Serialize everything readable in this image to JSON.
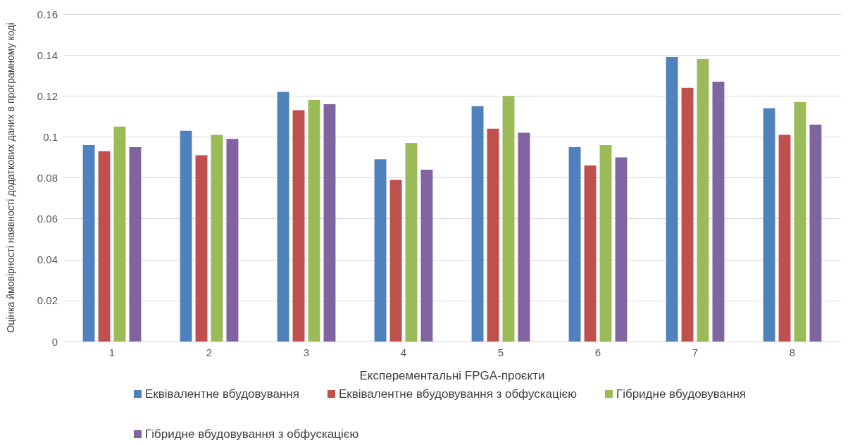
{
  "chart_data": {
    "type": "bar",
    "xlabel": "Експерементальні FPGA-проєкти",
    "ylabel": "Оцінка ймовірності наявності додаткових даних в програмному коді",
    "categories": [
      "1",
      "2",
      "3",
      "4",
      "5",
      "6",
      "7",
      "8"
    ],
    "series": [
      {
        "name": "Еквівалентне вбудовування",
        "color": "#4f81bd",
        "values": [
          0.096,
          0.103,
          0.122,
          0.089,
          0.115,
          0.095,
          0.139,
          0.114
        ]
      },
      {
        "name": "Еквівалентне вбудовування з обфускацією",
        "color": "#c0504d",
        "values": [
          0.093,
          0.091,
          0.113,
          0.079,
          0.104,
          0.086,
          0.124,
          0.101
        ]
      },
      {
        "name": "Гібридне вбудовування",
        "color": "#9bbb59",
        "values": [
          0.105,
          0.101,
          0.118,
          0.097,
          0.12,
          0.096,
          0.138,
          0.117
        ]
      },
      {
        "name": "Гібридне вбудовування з обфускацією",
        "color": "#8064a2",
        "values": [
          0.095,
          0.099,
          0.116,
          0.084,
          0.102,
          0.09,
          0.127,
          0.106
        ]
      }
    ],
    "ylim": [
      0,
      0.16
    ],
    "yticks": [
      0,
      0.02,
      0.04,
      0.06,
      0.08,
      0.1,
      0.12,
      0.14,
      0.16
    ],
    "grid": "y",
    "legend": "bottom"
  }
}
